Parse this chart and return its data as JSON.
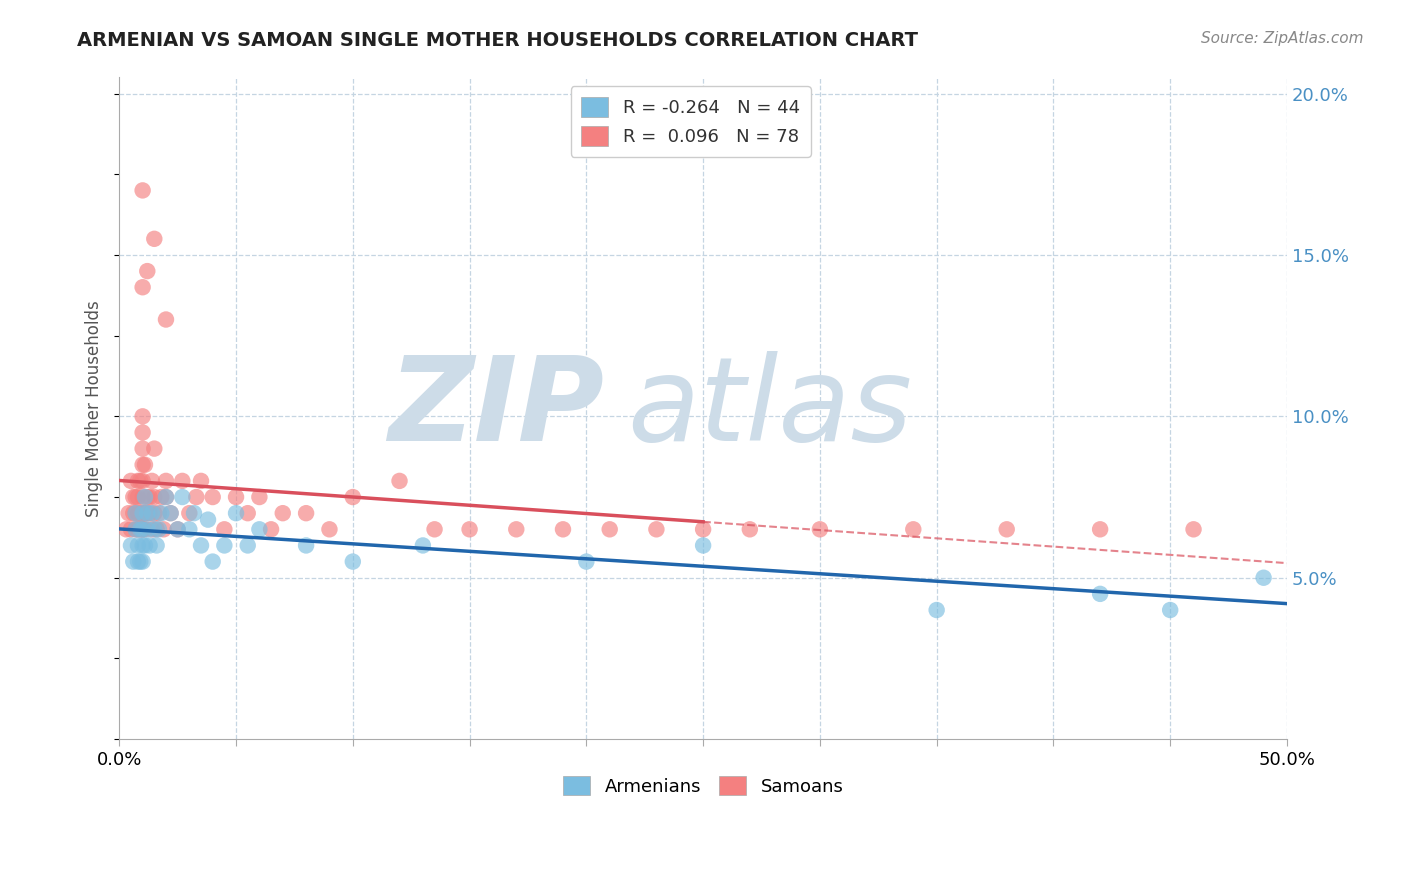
{
  "title": "ARMENIAN VS SAMOAN SINGLE MOTHER HOUSEHOLDS CORRELATION CHART",
  "source": "Source: ZipAtlas.com",
  "ylabel": "Single Mother Households",
  "xlim": [
    0.0,
    0.5
  ],
  "ylim": [
    0.0,
    0.205
  ],
  "armenian_R": -0.264,
  "armenian_N": 44,
  "samoan_R": 0.096,
  "samoan_N": 78,
  "armenian_color": "#7bbde0",
  "samoan_color": "#f48080",
  "armenian_line_color": "#2166ac",
  "samoan_line_color": "#d94f5c",
  "samoan_line_solid_end": 0.25,
  "watermark_color": "#cddce8",
  "background": "#ffffff",
  "grid_color": "#c5d5e2",
  "right_axis_color": "#4a90c4",
  "arm_x": [
    0.005,
    0.006,
    0.007,
    0.007,
    0.008,
    0.008,
    0.009,
    0.009,
    0.01,
    0.01,
    0.01,
    0.01,
    0.011,
    0.011,
    0.012,
    0.012,
    0.013,
    0.014,
    0.015,
    0.016,
    0.017,
    0.018,
    0.02,
    0.022,
    0.025,
    0.027,
    0.03,
    0.032,
    0.035,
    0.038,
    0.04,
    0.045,
    0.05,
    0.055,
    0.06,
    0.08,
    0.1,
    0.13,
    0.2,
    0.25,
    0.35,
    0.42,
    0.45,
    0.49
  ],
  "arm_y": [
    0.06,
    0.055,
    0.065,
    0.07,
    0.06,
    0.055,
    0.065,
    0.055,
    0.07,
    0.065,
    0.06,
    0.055,
    0.075,
    0.06,
    0.07,
    0.065,
    0.06,
    0.07,
    0.065,
    0.06,
    0.065,
    0.07,
    0.075,
    0.07,
    0.065,
    0.075,
    0.065,
    0.07,
    0.06,
    0.068,
    0.055,
    0.06,
    0.07,
    0.06,
    0.065,
    0.06,
    0.055,
    0.06,
    0.055,
    0.06,
    0.04,
    0.045,
    0.04,
    0.05
  ],
  "sam_x": [
    0.003,
    0.004,
    0.005,
    0.005,
    0.006,
    0.006,
    0.007,
    0.007,
    0.007,
    0.008,
    0.008,
    0.008,
    0.008,
    0.009,
    0.009,
    0.009,
    0.01,
    0.01,
    0.01,
    0.01,
    0.01,
    0.01,
    0.01,
    0.01,
    0.01,
    0.011,
    0.011,
    0.011,
    0.012,
    0.012,
    0.013,
    0.013,
    0.014,
    0.014,
    0.015,
    0.015,
    0.015,
    0.016,
    0.017,
    0.018,
    0.019,
    0.02,
    0.02,
    0.022,
    0.025,
    0.027,
    0.03,
    0.033,
    0.035,
    0.04,
    0.045,
    0.05,
    0.055,
    0.06,
    0.065,
    0.07,
    0.08,
    0.09,
    0.1,
    0.12,
    0.135,
    0.15,
    0.17,
    0.19,
    0.21,
    0.23,
    0.25,
    0.27,
    0.3,
    0.34,
    0.38,
    0.42,
    0.46,
    0.01,
    0.01,
    0.012,
    0.015,
    0.02
  ],
  "sam_y": [
    0.065,
    0.07,
    0.065,
    0.08,
    0.07,
    0.075,
    0.065,
    0.07,
    0.075,
    0.065,
    0.07,
    0.075,
    0.08,
    0.065,
    0.07,
    0.08,
    0.065,
    0.065,
    0.07,
    0.075,
    0.08,
    0.085,
    0.09,
    0.095,
    0.1,
    0.065,
    0.07,
    0.085,
    0.07,
    0.075,
    0.07,
    0.075,
    0.065,
    0.08,
    0.07,
    0.075,
    0.09,
    0.065,
    0.07,
    0.075,
    0.065,
    0.075,
    0.08,
    0.07,
    0.065,
    0.08,
    0.07,
    0.075,
    0.08,
    0.075,
    0.065,
    0.075,
    0.07,
    0.075,
    0.065,
    0.07,
    0.07,
    0.065,
    0.075,
    0.08,
    0.065,
    0.065,
    0.065,
    0.065,
    0.065,
    0.065,
    0.065,
    0.065,
    0.065,
    0.065,
    0.065,
    0.065,
    0.065,
    0.14,
    0.17,
    0.145,
    0.155,
    0.13
  ]
}
